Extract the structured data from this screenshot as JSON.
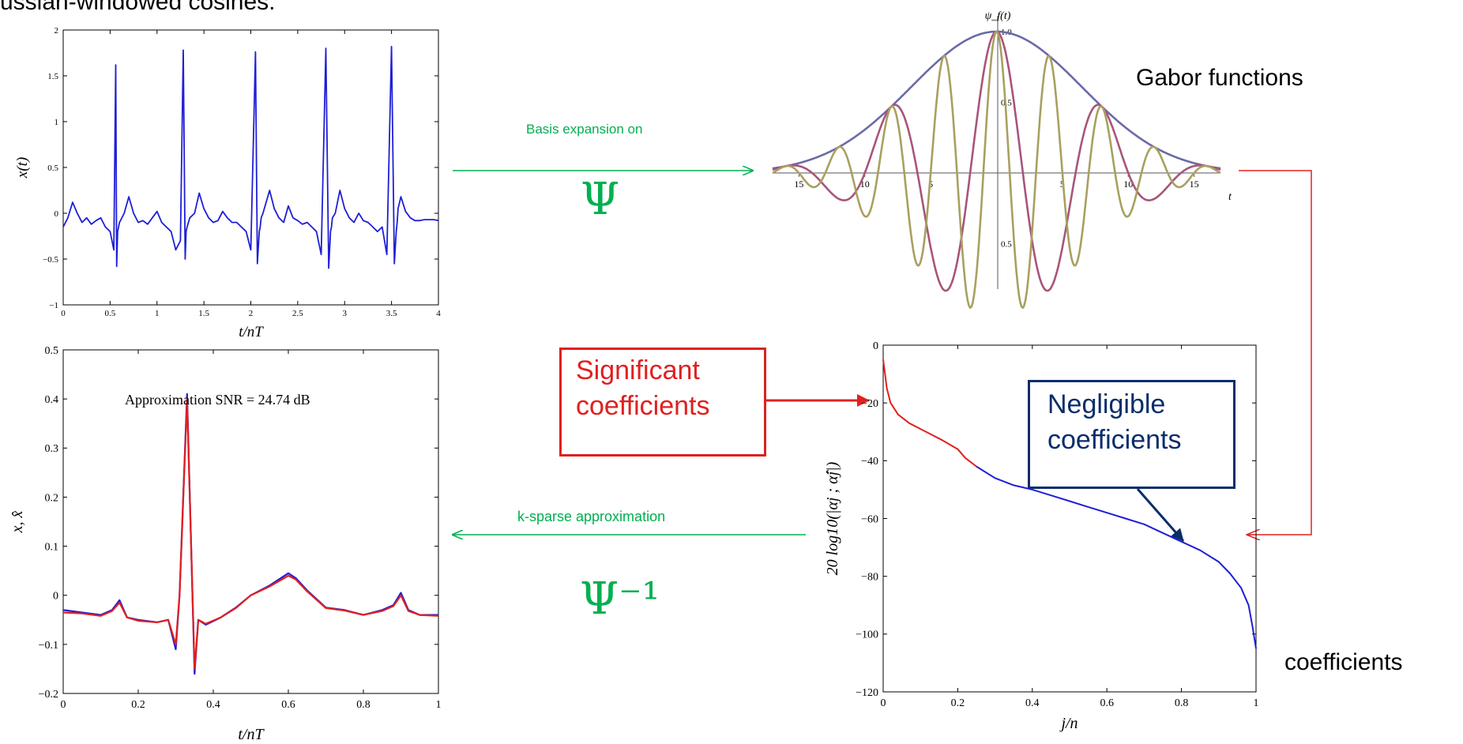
{
  "headline": "ussian-windowed cosines.",
  "labels": {
    "gabor": "Gabor functions",
    "coefficients": "coefficients",
    "basis_expansion": "Basis expansion on",
    "psi": "Ψ",
    "psi_inverse": "Ψ⁻¹",
    "sparse_approx": "k-sparse approximation",
    "significant": [
      "Significant",
      "coefficients"
    ],
    "negligible": [
      "Negligible",
      "coefficients"
    ]
  },
  "colors": {
    "green": "#00b050",
    "red": "#e02020",
    "navy": "#0b2d6b",
    "blue": "#1f1fd6"
  },
  "chart_data": [
    {
      "id": "ecg-signal",
      "type": "line",
      "xlabel": "t/nT",
      "ylabel": "x(t)",
      "xlim": [
        0,
        4
      ],
      "ylim": [
        -1,
        2
      ],
      "xticks": [
        "0",
        "0.5",
        "1",
        "1.5",
        "2",
        "2.5",
        "3",
        "3.5",
        "4"
      ],
      "yticks": [
        "−1",
        "−0.5",
        "0",
        "0.5",
        "1",
        "1.5",
        "2"
      ],
      "series": [
        {
          "color": "#1f1fd6",
          "x": [
            0,
            0.05,
            0.1,
            0.15,
            0.2,
            0.25,
            0.3,
            0.35,
            0.4,
            0.45,
            0.5,
            0.54,
            0.56,
            0.57,
            0.58,
            0.6,
            0.65,
            0.7,
            0.75,
            0.8,
            0.85,
            0.9,
            0.95,
            1.0,
            1.05,
            1.1,
            1.15,
            1.2,
            1.25,
            1.28,
            1.3,
            1.31,
            1.32,
            1.35,
            1.4,
            1.45,
            1.5,
            1.55,
            1.6,
            1.65,
            1.7,
            1.75,
            1.8,
            1.85,
            1.9,
            1.95,
            2.0,
            2.05,
            2.07,
            2.09,
            2.1,
            2.11,
            2.13,
            2.2,
            2.25,
            2.3,
            2.35,
            2.4,
            2.45,
            2.5,
            2.55,
            2.6,
            2.65,
            2.7,
            2.75,
            2.8,
            2.83,
            2.85,
            2.86,
            2.87,
            2.9,
            2.95,
            3.0,
            3.05,
            3.1,
            3.15,
            3.2,
            3.25,
            3.3,
            3.35,
            3.4,
            3.45,
            3.5,
            3.53,
            3.55,
            3.56,
            3.57,
            3.6,
            3.65,
            3.7,
            3.75,
            3.8,
            3.85,
            3.9,
            3.95,
            4.0
          ],
          "y": [
            -0.15,
            -0.05,
            0.12,
            0.0,
            -0.1,
            -0.05,
            -0.12,
            -0.08,
            -0.05,
            -0.15,
            -0.2,
            -0.4,
            1.62,
            -0.58,
            -0.2,
            -0.1,
            0.0,
            0.18,
            0.0,
            -0.1,
            -0.08,
            -0.12,
            -0.05,
            0.02,
            -0.1,
            -0.15,
            -0.2,
            -0.4,
            -0.3,
            1.78,
            -0.5,
            -0.2,
            -0.15,
            -0.05,
            0.0,
            0.22,
            0.05,
            -0.05,
            -0.1,
            -0.08,
            0.02,
            -0.05,
            -0.1,
            -0.1,
            -0.15,
            -0.2,
            -0.4,
            1.76,
            -0.55,
            -0.2,
            -0.15,
            -0.05,
            0.0,
            0.25,
            0.05,
            -0.05,
            -0.1,
            0.08,
            -0.05,
            -0.08,
            -0.12,
            -0.1,
            -0.15,
            -0.2,
            -0.45,
            1.8,
            -0.6,
            -0.2,
            -0.15,
            -0.05,
            0.0,
            0.25,
            0.05,
            -0.05,
            -0.1,
            0.0,
            -0.08,
            -0.1,
            -0.15,
            -0.2,
            -0.15,
            -0.45,
            1.82,
            -0.55,
            -0.2,
            -0.1,
            0.05,
            0.18,
            0.02,
            -0.05,
            -0.08,
            -0.08,
            -0.07,
            -0.07,
            -0.07,
            -0.08
          ]
        }
      ]
    },
    {
      "id": "gabor-plot",
      "type": "line",
      "title": "ψ_f(t)",
      "xlabel": "t",
      "xlim": [
        -17,
        17
      ],
      "ylim": [
        -1,
        1
      ],
      "xticks_labels": [
        "15",
        "10",
        "5",
        "5",
        "10",
        "15"
      ],
      "xtick_values": [
        -15,
        -10,
        -5,
        5,
        10,
        15
      ],
      "yticks_labels": [
        "1.0",
        "0.5",
        "0.5"
      ],
      "ytick_values": [
        1.0,
        0.5,
        -0.5
      ],
      "series": [
        {
          "color": "#6a6aa8",
          "gauss_sigma": 6.5,
          "freq": 0
        },
        {
          "color": "#a8557a",
          "gauss_sigma": 6.5,
          "freq": 0.125
        },
        {
          "color": "#a8a060",
          "gauss_sigma": 6.5,
          "freq": 0.25
        }
      ]
    },
    {
      "id": "approximation-plot",
      "type": "line",
      "annotation": "Approximation SNR = 24.74 dB",
      "xlabel": "t/nT",
      "ylabel": "x, x̂",
      "xlim": [
        0,
        1
      ],
      "ylim": [
        -0.2,
        0.5
      ],
      "xticks": [
        "0",
        "0.2",
        "0.4",
        "0.6",
        "0.8",
        "1"
      ],
      "yticks": [
        "−0.2",
        "−0.1",
        "0",
        "0.1",
        "0.2",
        "0.3",
        "0.4",
        "0.5"
      ],
      "series": [
        {
          "color": "#1f1fd6",
          "x": [
            0,
            0.05,
            0.1,
            0.13,
            0.15,
            0.17,
            0.2,
            0.25,
            0.28,
            0.3,
            0.31,
            0.33,
            0.35,
            0.36,
            0.38,
            0.42,
            0.46,
            0.5,
            0.55,
            0.6,
            0.62,
            0.65,
            0.7,
            0.75,
            0.8,
            0.85,
            0.88,
            0.9,
            0.92,
            0.95,
            1.0
          ],
          "y": [
            -0.03,
            -0.035,
            -0.04,
            -0.03,
            -0.01,
            -0.045,
            -0.05,
            -0.055,
            -0.05,
            -0.11,
            0.0,
            0.41,
            -0.16,
            -0.05,
            -0.06,
            -0.045,
            -0.025,
            0.0,
            0.02,
            0.045,
            0.035,
            0.01,
            -0.025,
            -0.03,
            -0.04,
            -0.03,
            -0.02,
            0.005,
            -0.03,
            -0.04,
            -0.04
          ]
        },
        {
          "color": "#e02020",
          "x": [
            0,
            0.05,
            0.1,
            0.13,
            0.15,
            0.17,
            0.2,
            0.25,
            0.28,
            0.3,
            0.31,
            0.33,
            0.35,
            0.36,
            0.38,
            0.42,
            0.46,
            0.5,
            0.55,
            0.6,
            0.62,
            0.65,
            0.7,
            0.75,
            0.8,
            0.85,
            0.88,
            0.9,
            0.92,
            0.95,
            1.0
          ],
          "y": [
            -0.035,
            -0.037,
            -0.042,
            -0.032,
            -0.015,
            -0.045,
            -0.052,
            -0.055,
            -0.05,
            -0.1,
            0.0,
            0.4,
            -0.15,
            -0.05,
            -0.058,
            -0.045,
            -0.026,
            0.0,
            0.018,
            0.04,
            0.032,
            0.008,
            -0.026,
            -0.031,
            -0.04,
            -0.032,
            -0.022,
            0.0,
            -0.032,
            -0.04,
            -0.042
          ]
        }
      ]
    },
    {
      "id": "coefficient-decay",
      "type": "line",
      "xlabel": "j/n",
      "ylabel": "20 log10(|αj ; α̂j|)",
      "xlim": [
        0,
        1
      ],
      "ylim": [
        -120,
        0
      ],
      "xticks": [
        "0",
        "0.2",
        "0.4",
        "0.6",
        "0.8",
        "1"
      ],
      "yticks": [
        "−120",
        "−100",
        "−80",
        "−60",
        "−40",
        "−20",
        "0"
      ],
      "series": [
        {
          "color": "#e02020",
          "x": [
            0,
            0.01,
            0.02,
            0.04,
            0.07,
            0.1,
            0.13,
            0.16,
            0.2,
            0.22,
            0.25
          ],
          "y": [
            -5,
            -15,
            -20,
            -24,
            -27,
            -29,
            -31,
            -33,
            -36,
            -39,
            -42
          ]
        },
        {
          "color": "#1f1fd6",
          "x": [
            0.25,
            0.3,
            0.35,
            0.4,
            0.45,
            0.5,
            0.55,
            0.6,
            0.65,
            0.7,
            0.75,
            0.8,
            0.85,
            0.9,
            0.93,
            0.96,
            0.98,
            0.99,
            1.0
          ],
          "y": [
            -42,
            -46,
            -48.5,
            -50,
            -52,
            -54,
            -56,
            -58,
            -60,
            -62,
            -65,
            -68,
            -71,
            -75,
            -79,
            -84,
            -90,
            -97,
            -105
          ]
        }
      ]
    }
  ]
}
